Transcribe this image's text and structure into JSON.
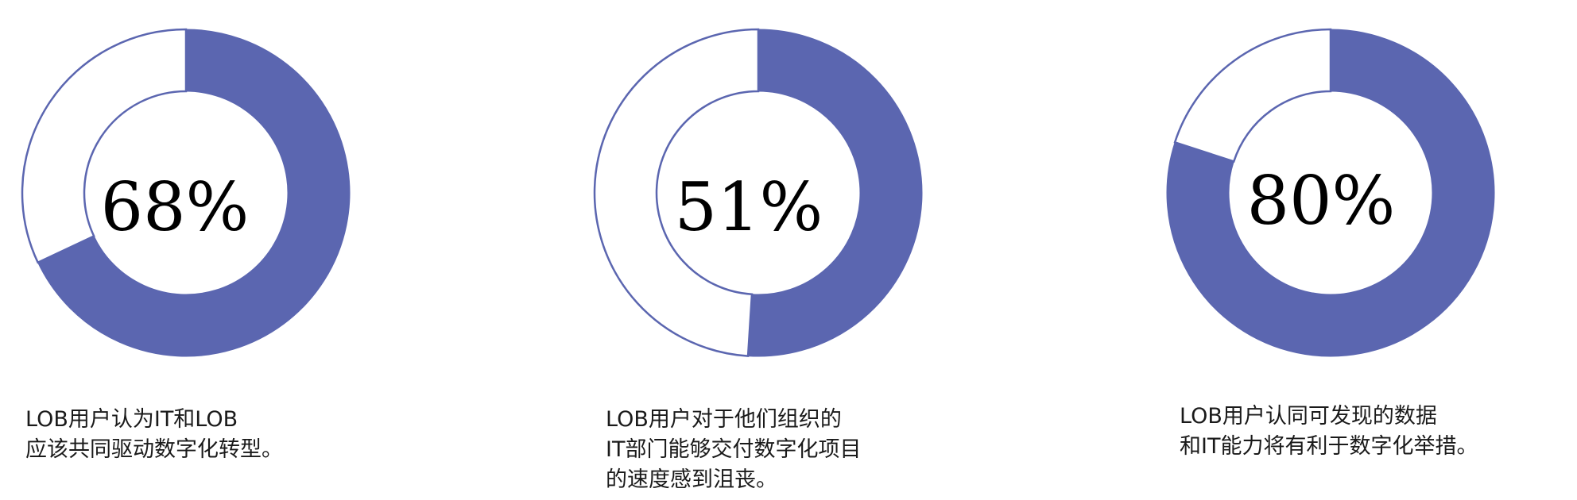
{
  "colors": {
    "filled": "#5b66b0",
    "outline": "#5b66b0",
    "empty": "#ffffff"
  },
  "chart_data": [
    {
      "type": "pie",
      "value": 68,
      "label": "68%",
      "caption": [
        "LOB用户认为IT和LOB",
        "应该共同驱动数字化转型。"
      ]
    },
    {
      "type": "pie",
      "value": 51,
      "label": "51%",
      "caption": [
        "LOB用户对于他们组织的",
        "IT部门能够交付数字化项目",
        "的速度感到沮丧。"
      ]
    },
    {
      "type": "pie",
      "value": 80,
      "label": "80%",
      "caption": [
        "LOB用户认同可发现的数据",
        "和IT能力将有利于数字化举措。"
      ]
    }
  ]
}
